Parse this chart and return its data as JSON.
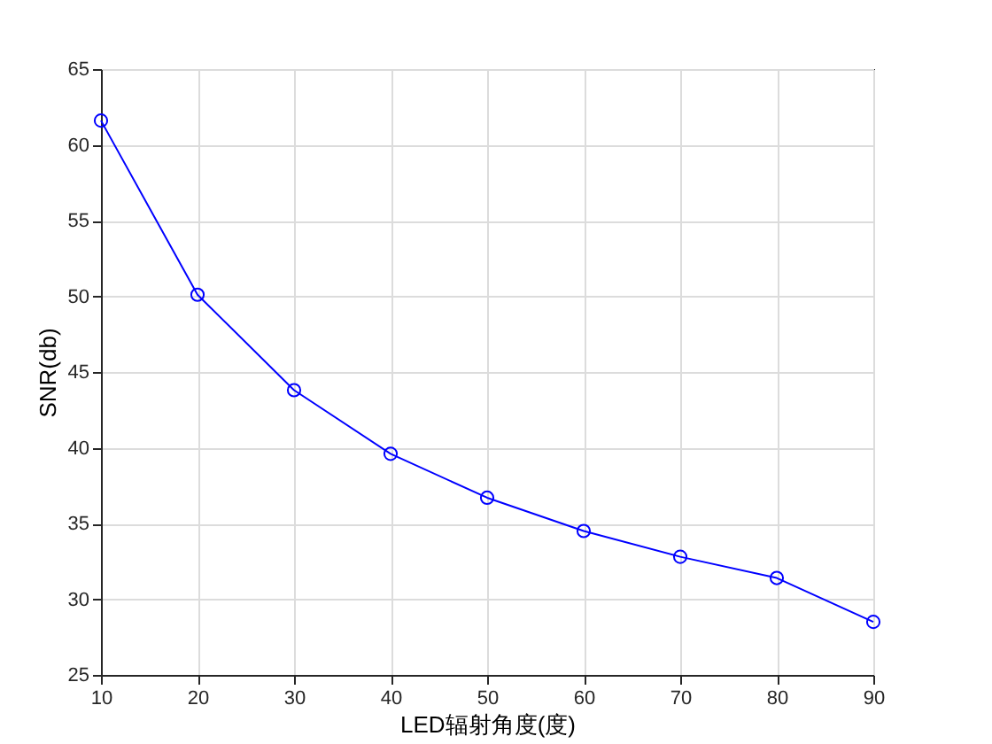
{
  "chart_data": {
    "type": "line",
    "xlabel": "LED辐射角度(度)",
    "ylabel": "SNR(db)",
    "x": [
      10,
      20,
      30,
      40,
      50,
      60,
      70,
      80,
      90
    ],
    "series": [
      {
        "color": "#0000ff",
        "values": [
          61.6,
          50.1,
          43.8,
          39.6,
          36.7,
          34.5,
          32.8,
          31.4,
          28.5
        ]
      }
    ],
    "xlim": [
      10,
      90
    ],
    "xticks": [
      10,
      20,
      30,
      40,
      50,
      60,
      70,
      80,
      90
    ],
    "ylim": [
      25,
      65
    ],
    "yticks": [
      25,
      30,
      35,
      40,
      45,
      50,
      55,
      60,
      65
    ],
    "grid": true,
    "marker": "circle",
    "line_style": "solid"
  }
}
